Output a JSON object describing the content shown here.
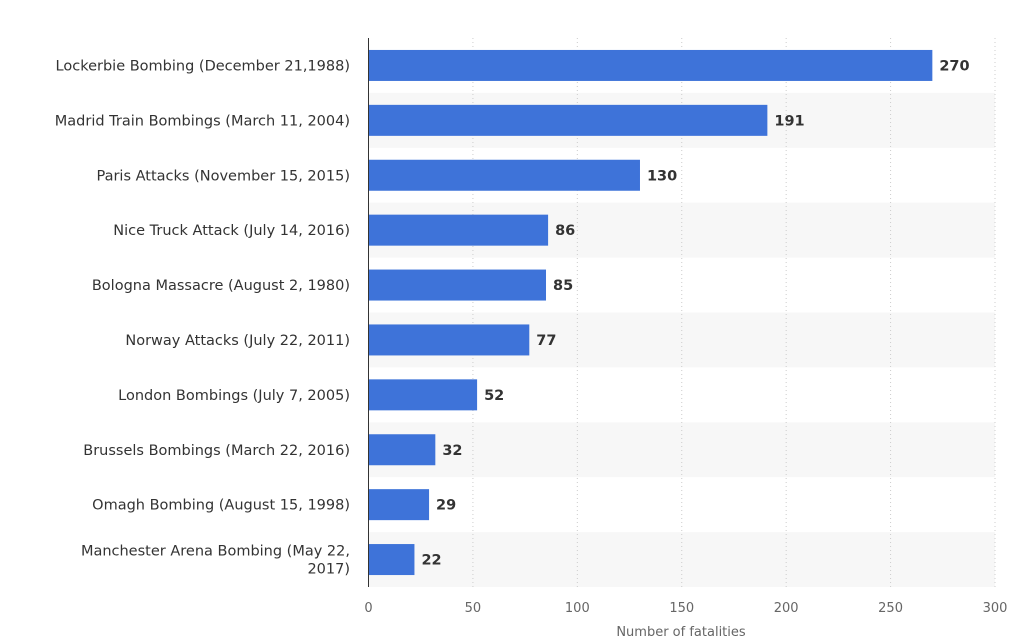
{
  "chart_data": {
    "type": "bar",
    "orientation": "horizontal",
    "categories": [
      "Lockerbie Bombing (December 21,1988)",
      "Madrid Train Bombings (March 11, 2004)",
      "Paris Attacks (November 15, 2015)",
      "Nice Truck Attack (July 14, 2016)",
      "Bologna Massacre (August 2, 1980)",
      "Norway Attacks (July 22, 2011)",
      "London Bombings (July 7, 2005)",
      "Brussels Bombings (March 22, 2016)",
      "Omagh Bombing (August 15, 1998)",
      "Manchester Arena Bombing (May 22, 2017)"
    ],
    "category_label_lines": [
      [
        "Lockerbie Bombing (December 21,1988)"
      ],
      [
        "Madrid Train Bombings (March 11, 2004)"
      ],
      [
        "Paris Attacks (November 15, 2015)"
      ],
      [
        "Nice Truck Attack (July 14, 2016)"
      ],
      [
        "Bologna Massacre (August 2, 1980)"
      ],
      [
        "Norway Attacks (July 22, 2011)"
      ],
      [
        "London Bombings (July 7, 2005)"
      ],
      [
        "Brussels Bombings (March 22, 2016)"
      ],
      [
        "Omagh Bombing (August 15, 1998)"
      ],
      [
        "Manchester Arena Bombing (May 22,",
        "2017)"
      ]
    ],
    "values": [
      270,
      191,
      130,
      86,
      85,
      77,
      52,
      32,
      29,
      22
    ],
    "title": "",
    "xlabel": "Number of fatalities",
    "ylabel": "",
    "xlim": [
      0,
      300
    ],
    "xticks": [
      0,
      50,
      100,
      150,
      200,
      250,
      300
    ],
    "grid": "vertical dotted",
    "legend": "none",
    "bar_color": "#3e73d9",
    "band_color": "#f7f7f7"
  }
}
